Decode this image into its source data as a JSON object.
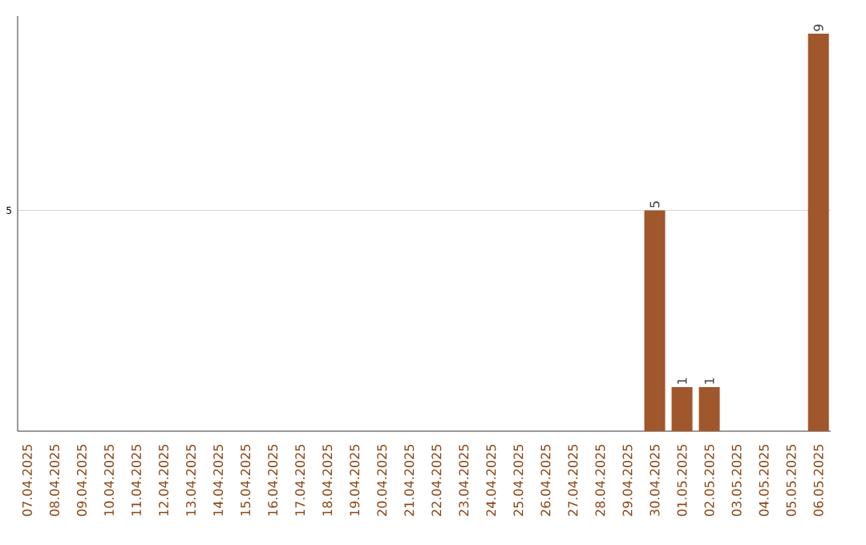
{
  "chart_data": {
    "type": "bar",
    "categories": [
      "07.04.2025",
      "08.04.2025",
      "09.04.2025",
      "10.04.2025",
      "11.04.2025",
      "12.04.2025",
      "13.04.2025",
      "14.04.2025",
      "15.04.2025",
      "16.04.2025",
      "17.04.2025",
      "18.04.2025",
      "19.04.2025",
      "20.04.2025",
      "21.04.2025",
      "22.04.2025",
      "23.04.2025",
      "24.04.2025",
      "25.04.2025",
      "26.04.2025",
      "27.04.2025",
      "28.04.2025",
      "29.04.2025",
      "30.04.2025",
      "01.05.2025",
      "02.05.2025",
      "03.05.2025",
      "04.05.2025",
      "05.05.2025",
      "06.05.2025"
    ],
    "values": [
      null,
      null,
      null,
      null,
      null,
      null,
      null,
      null,
      null,
      null,
      null,
      null,
      null,
      null,
      null,
      null,
      null,
      null,
      null,
      null,
      null,
      null,
      null,
      5,
      1,
      1,
      null,
      null,
      null,
      9
    ],
    "data_labels": true,
    "color": "#a0572b",
    "ylim": [
      0,
      9.4
    ],
    "yticks": [
      5
    ],
    "grid": "y"
  }
}
